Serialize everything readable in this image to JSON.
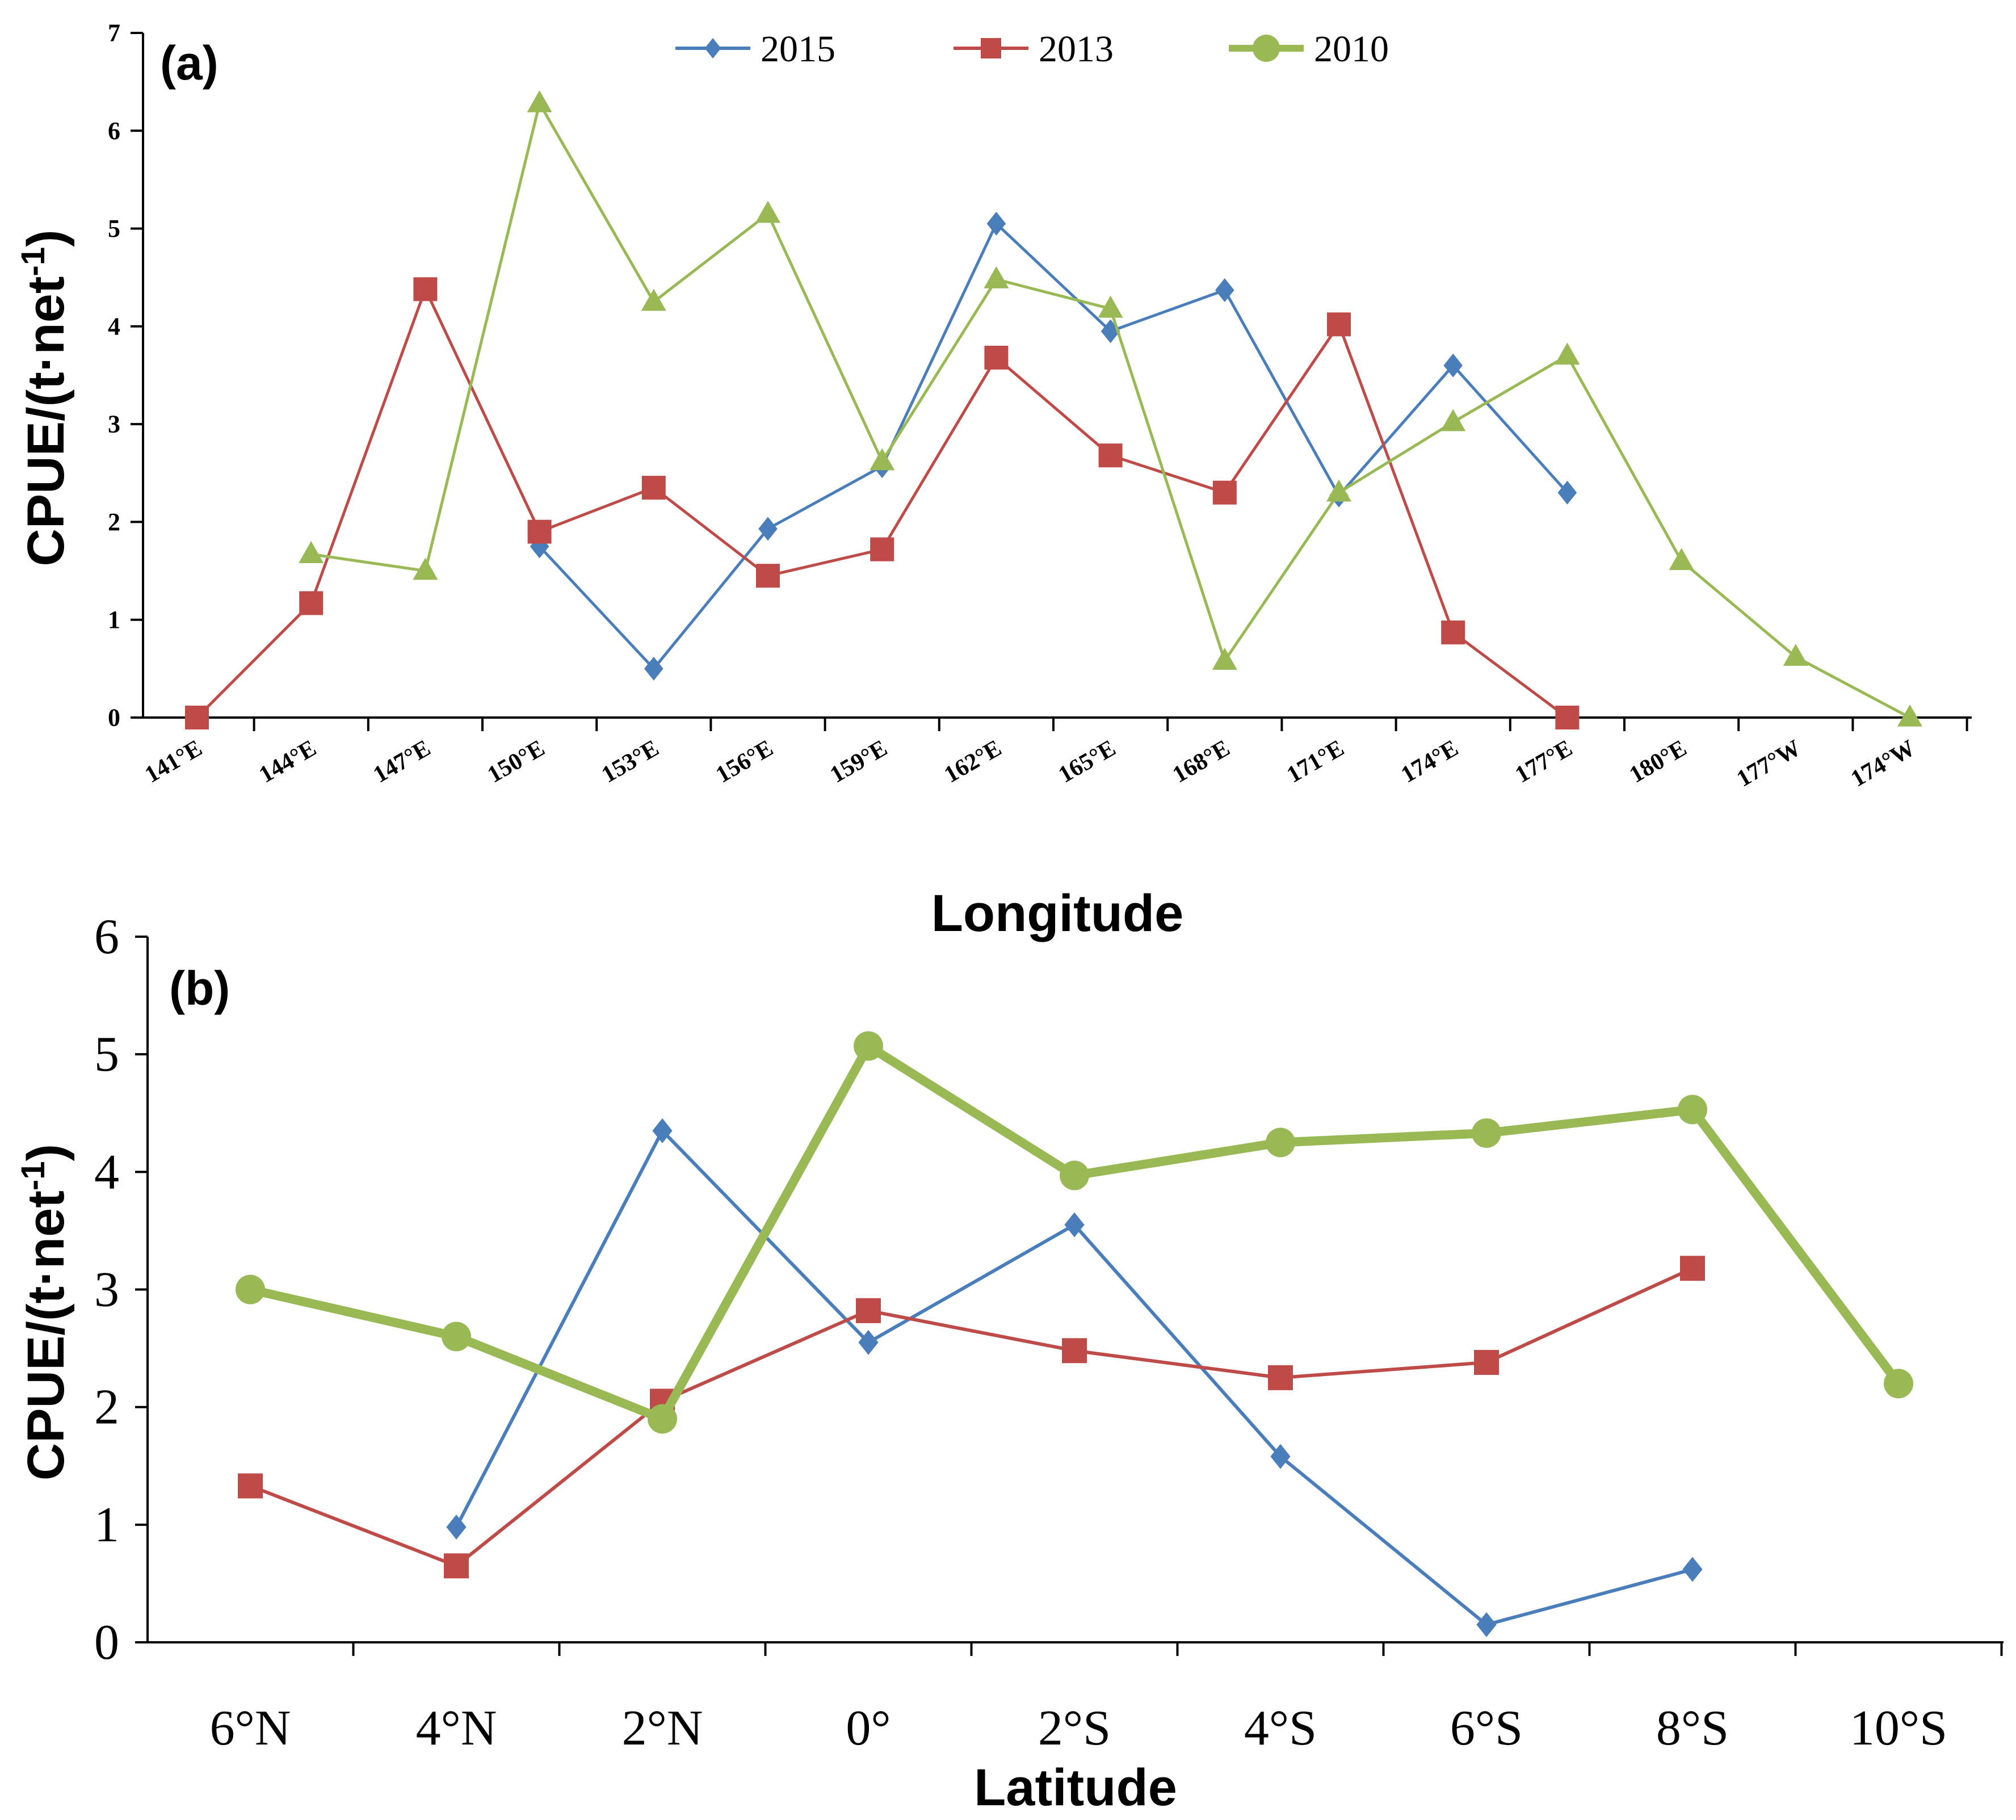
{
  "colors": {
    "s2015": "#4a7ebb",
    "s2013": "#be4b48",
    "s2010": "#98b954",
    "axis": "#000000"
  },
  "legend": [
    "2015",
    "2013",
    "2010"
  ],
  "chart_data": [
    {
      "type": "line",
      "panel_label": "(a)",
      "xlabel": "Longitude",
      "ylabel": "CPUE/(t·net",
      "ylabel_sup": "-1",
      "ylabel_close": ")",
      "ylim": [
        0,
        7
      ],
      "yticks": [
        "0",
        "1",
        "2",
        "3",
        "4",
        "5",
        "6",
        "7"
      ],
      "grid": false,
      "legend_position": "top-center",
      "categories": [
        "141°E",
        "144°E",
        "147°E",
        "150°E",
        "153°E",
        "156°E",
        "159°E",
        "162°E",
        "165°E",
        "168°E",
        "171°E",
        "174°E",
        "177°E",
        "180°E",
        "177°W",
        "174°W"
      ],
      "series": [
        {
          "name": "2015",
          "marker": "diamond",
          "values": [
            null,
            null,
            null,
            1.75,
            0.5,
            1.93,
            2.57,
            5.05,
            3.95,
            4.37,
            2.27,
            3.6,
            2.3,
            null,
            null,
            null
          ]
        },
        {
          "name": "2013",
          "marker": "square",
          "values": [
            0,
            1.17,
            4.38,
            1.9,
            2.35,
            1.45,
            1.72,
            3.68,
            2.68,
            2.3,
            4.02,
            0.87,
            0,
            null,
            null,
            null
          ]
        },
        {
          "name": "2010",
          "marker": "triangle",
          "values": [
            null,
            1.67,
            1.5,
            6.28,
            4.25,
            5.15,
            2.62,
            4.48,
            4.18,
            0.58,
            2.3,
            3.02,
            3.7,
            1.6,
            0.62,
            0
          ]
        }
      ]
    },
    {
      "type": "line",
      "panel_label": "(b)",
      "xlabel": "Latitude",
      "ylabel": "CPUE/(t·net",
      "ylabel_sup": "-1",
      "ylabel_close": ")",
      "ylim": [
        0,
        6
      ],
      "yticks": [
        "0",
        "1",
        "2",
        "3",
        "4",
        "5",
        "6"
      ],
      "grid": false,
      "categories": [
        "6°N",
        "4°N",
        "2°N",
        "0°",
        "2°S",
        "4°S",
        "6°S",
        "8°S",
        "10°S"
      ],
      "series": [
        {
          "name": "2015",
          "marker": "diamond",
          "values": [
            null,
            0.98,
            4.35,
            2.55,
            3.55,
            1.58,
            0.15,
            0.62,
            null
          ]
        },
        {
          "name": "2013",
          "marker": "square",
          "values": [
            1.33,
            0.65,
            2.05,
            2.82,
            2.48,
            2.25,
            2.38,
            3.18,
            null
          ]
        },
        {
          "name": "2010",
          "marker": "circle",
          "values": [
            3.0,
            2.6,
            1.9,
            5.07,
            3.97,
            4.25,
            4.33,
            4.53,
            2.2
          ]
        }
      ]
    }
  ]
}
